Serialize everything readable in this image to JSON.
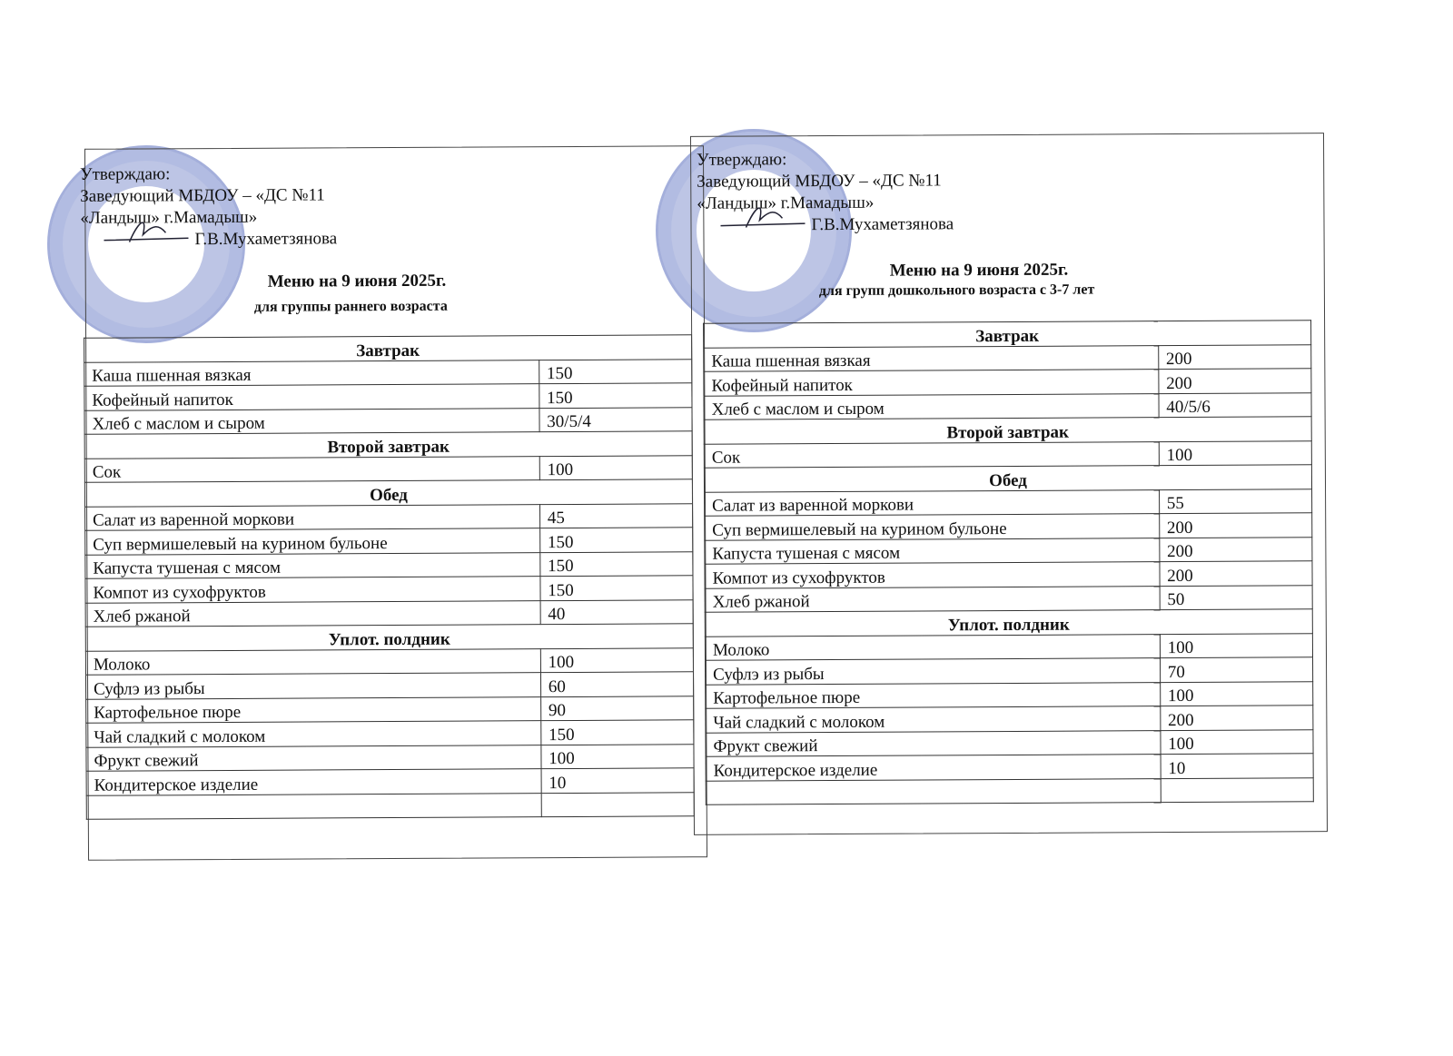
{
  "stamp_color": "#5a6ebe",
  "menus": [
    {
      "approve": {
        "line1": "Утверждаю:",
        "line2": "Заведующий МБДОУ – «ДС №11",
        "line3": "«Ландыш» г.Мамадыш»",
        "signer": "Г.В.Мухаметзянова"
      },
      "title": "Меню на 9 июня 2025г.",
      "subtitle": "для группы раннего возраста",
      "sections": [
        {
          "name": "Завтрак",
          "items": [
            [
              "Каша пшенная вязкая",
              "150"
            ],
            [
              "Кофейный напиток",
              "150"
            ],
            [
              "Хлеб с маслом и сыром",
              "30/5/4"
            ]
          ]
        },
        {
          "name": "Второй завтрак",
          "items": [
            [
              "Сок",
              "100"
            ]
          ]
        },
        {
          "name": "Обед",
          "items": [
            [
              "Салат из варенной моркови",
              "45"
            ],
            [
              "Суп вермишелевый на курином бульоне",
              "150"
            ],
            [
              "Капуста тушеная с мясом",
              "150"
            ],
            [
              "Компот из сухофруктов",
              "150"
            ],
            [
              "Хлеб ржаной",
              "40"
            ]
          ]
        },
        {
          "name": "Уплот. полдник",
          "items": [
            [
              "Молоко",
              "100"
            ],
            [
              "Суфлэ из рыбы",
              "60"
            ],
            [
              "Картофельное пюре",
              "90"
            ],
            [
              "Чай сладкий с молоком",
              "150"
            ],
            [
              "Фрукт свежий",
              "100"
            ],
            [
              "Кондитерское изделие",
              "10"
            ],
            [
              "",
              ""
            ]
          ]
        }
      ]
    },
    {
      "approve": {
        "line1": "Утверждаю:",
        "line2": "Заведующий МБДОУ – «ДС №11",
        "line3": "«Ландыш» г.Мамадыш»",
        "signer": "Г.В.Мухаметзянова"
      },
      "title": "Меню на 9 июня  2025г.",
      "subtitle": "для групп дошкольного возраста с 3-7 лет",
      "sections": [
        {
          "name": "Завтрак",
          "items": [
            [
              "Каша пшенная вязкая",
              "200"
            ],
            [
              "Кофейный напиток",
              "200"
            ],
            [
              "Хлеб с маслом и сыром",
              "40/5/6"
            ]
          ]
        },
        {
          "name": "Второй завтрак",
          "items": [
            [
              "Сок",
              "100"
            ]
          ]
        },
        {
          "name": "Обед",
          "items": [
            [
              "Салат из варенной моркови",
              "55"
            ],
            [
              "Суп вермишелевый на курином бульоне",
              "200"
            ],
            [
              "Капуста тушеная с мясом",
              "200"
            ],
            [
              "Компот из сухофруктов",
              "200"
            ],
            [
              "Хлеб ржаной",
              "50"
            ]
          ]
        },
        {
          "name": "Уплот. полдник",
          "items": [
            [
              "Молоко",
              "100"
            ],
            [
              "Суфлэ из рыбы",
              "70"
            ],
            [
              "Картофельное пюре",
              "100"
            ],
            [
              "Чай сладкий с молоком",
              "200"
            ],
            [
              "Фрукт свежий",
              "100"
            ],
            [
              "Кондитерское изделие",
              "10"
            ],
            [
              "",
              ""
            ]
          ]
        }
      ]
    }
  ]
}
